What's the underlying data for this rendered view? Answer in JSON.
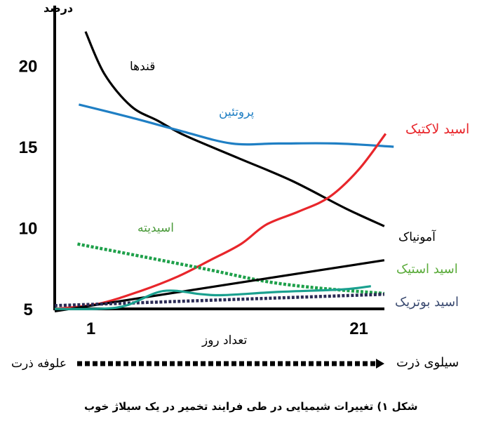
{
  "chart_data": {
    "type": "line",
    "ylabel": "درصد",
    "xlabel": "تعداد روز",
    "caption": "شکل ۱) تغییرات شیمیایی در طی فرایند تخمیر در یک سیلاژ خوب",
    "x_ticks": [
      1,
      21
    ],
    "y_ticks": [
      5,
      10,
      15,
      20
    ],
    "xlim": [
      -1.7,
      23.8
    ],
    "ylim": [
      4.8,
      23.6
    ],
    "grid": false,
    "arrow": {
      "start_label": "علوفه ذرت",
      "end_label": "سیلوی ذرت"
    },
    "series": [
      {
        "name": "قندها",
        "color": "#000000",
        "style": "solid",
        "points": [
          [
            0.6,
            22.1
          ],
          [
            2,
            19.5
          ],
          [
            4,
            17.5
          ],
          [
            6,
            16.6
          ],
          [
            8,
            15.7
          ],
          [
            12,
            14.3
          ],
          [
            16,
            12.9
          ],
          [
            20,
            11.2
          ],
          [
            22.9,
            10.1
          ]
        ]
      },
      {
        "name": "پروتئین",
        "color": "#1f7fc4",
        "style": "solid",
        "points": [
          [
            0.1,
            17.6
          ],
          [
            4,
            16.8
          ],
          [
            7.6,
            16.0
          ],
          [
            11.5,
            15.2
          ],
          [
            15,
            15.2
          ],
          [
            19.3,
            15.2
          ],
          [
            23.6,
            15.0
          ]
        ]
      },
      {
        "name": "اسید لاکتیک",
        "color": "#e8262b",
        "style": "solid",
        "points": [
          [
            -1.7,
            5.0
          ],
          [
            1.5,
            5.3
          ],
          [
            4.7,
            6.1
          ],
          [
            7.5,
            7.0
          ],
          [
            9.9,
            8.0
          ],
          [
            12.2,
            9.0
          ],
          [
            14.1,
            10.2
          ],
          [
            16.5,
            11.0
          ],
          [
            18.8,
            11.9
          ],
          [
            21,
            13.6
          ],
          [
            23,
            15.8
          ]
        ]
      },
      {
        "name": "اسیدیته",
        "color": "#1ea04a",
        "style": "dotted",
        "points": [
          [
            0,
            9.0
          ],
          [
            5,
            8.2
          ],
          [
            9.9,
            7.4
          ],
          [
            14,
            6.7
          ],
          [
            17.8,
            6.3
          ],
          [
            22.9,
            5.95
          ]
        ]
      },
      {
        "name": "آمونیاک",
        "color": "#000000",
        "style": "solid",
        "points": [
          [
            -1.7,
            4.85
          ],
          [
            22.9,
            8.0
          ]
        ]
      },
      {
        "name": "اسید بوتریک",
        "color": "#2b2b55",
        "style": "dotted",
        "points": [
          [
            -1.7,
            5.2
          ],
          [
            22.9,
            5.9
          ]
        ]
      },
      {
        "name": "اسید استیک",
        "color": "#1aa08f",
        "style": "solid",
        "points": [
          [
            -1.7,
            5.0
          ],
          [
            1.5,
            5.0
          ],
          [
            3.6,
            5.2
          ],
          [
            6.4,
            6.1
          ],
          [
            9.3,
            5.9
          ],
          [
            10.9,
            5.85
          ],
          [
            15.1,
            6.05
          ],
          [
            19.8,
            6.2
          ],
          [
            21.9,
            6.4
          ]
        ]
      }
    ],
    "label_colors": {
      "قندها": "#000000",
      "پروتئین": "#1f7fc4",
      "اسید لاکتیک": "#e8262b",
      "اسیدیته": "#4a9a3a",
      "آمونیاک": "#000000",
      "اسید استیک": "#5aab3a",
      "اسید بوتریک": "#3a4a70"
    }
  }
}
